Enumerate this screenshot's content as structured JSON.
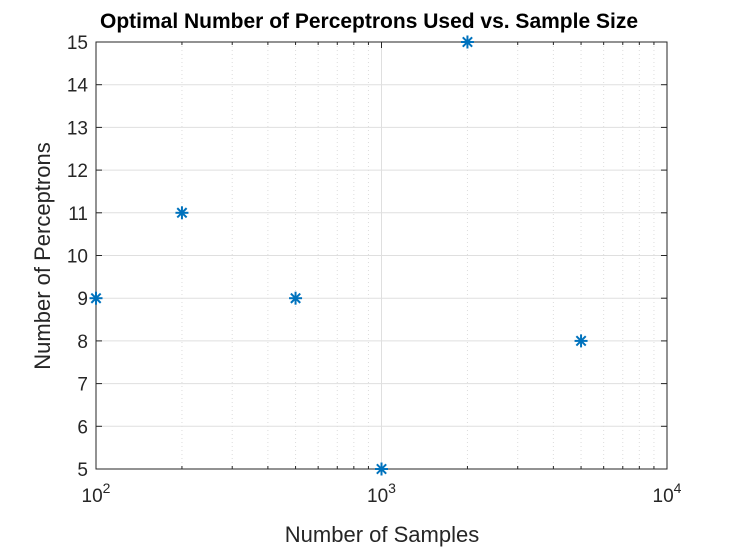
{
  "chart_data": {
    "type": "scatter",
    "title": "Optimal Number of Perceptrons Used vs. Sample Size",
    "xlabel": "Number of Samples",
    "ylabel": "Number of Perceptrons",
    "xscale": "log",
    "xlim": [
      100,
      10000
    ],
    "ylim": [
      5,
      15
    ],
    "grid": true,
    "marker": "asterisk",
    "series_color": "#0072bd",
    "x_ticks": [
      {
        "value": 100,
        "base": "10",
        "exp": "2"
      },
      {
        "value": 1000,
        "base": "10",
        "exp": "3"
      },
      {
        "value": 10000,
        "base": "10",
        "exp": "4"
      }
    ],
    "y_ticks": [
      5,
      6,
      7,
      8,
      9,
      10,
      11,
      12,
      13,
      14,
      15
    ],
    "x": [
      100,
      200,
      500,
      1000,
      2000,
      5000
    ],
    "y": [
      9,
      11,
      9,
      5,
      15,
      8
    ]
  }
}
